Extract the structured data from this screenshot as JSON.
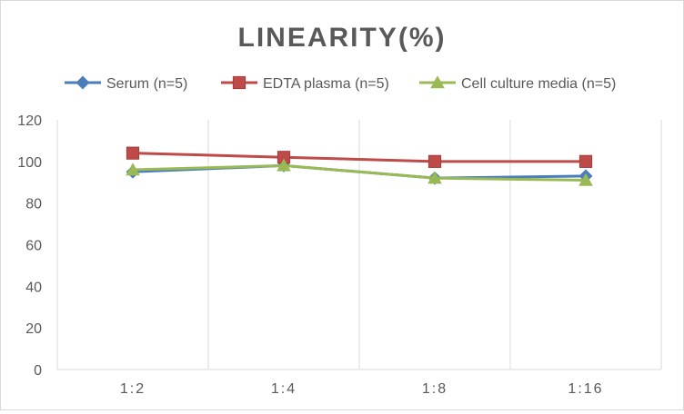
{
  "chart_data": {
    "type": "line",
    "title": "LINEARITY(%)",
    "xlabel": "",
    "ylabel": "",
    "categories": [
      "1:2",
      "1:4",
      "1:8",
      "1:16"
    ],
    "ylim": [
      0,
      120
    ],
    "yticks": [
      0,
      20,
      40,
      60,
      80,
      100,
      120
    ],
    "grid": "vertical",
    "legend_position": "top",
    "series": [
      {
        "name": "Serum (n=5)",
        "values": [
          95,
          98,
          92,
          93
        ],
        "color": "#4a7ebb",
        "marker": "diamond"
      },
      {
        "name": "EDTA plasma (n=5)",
        "values": [
          104,
          102,
          100,
          100
        ],
        "color": "#be4b48",
        "marker": "square"
      },
      {
        "name": "Cell culture media (n=5)",
        "values": [
          96,
          98,
          92,
          91
        ],
        "color": "#98b954",
        "marker": "triangle"
      }
    ]
  }
}
